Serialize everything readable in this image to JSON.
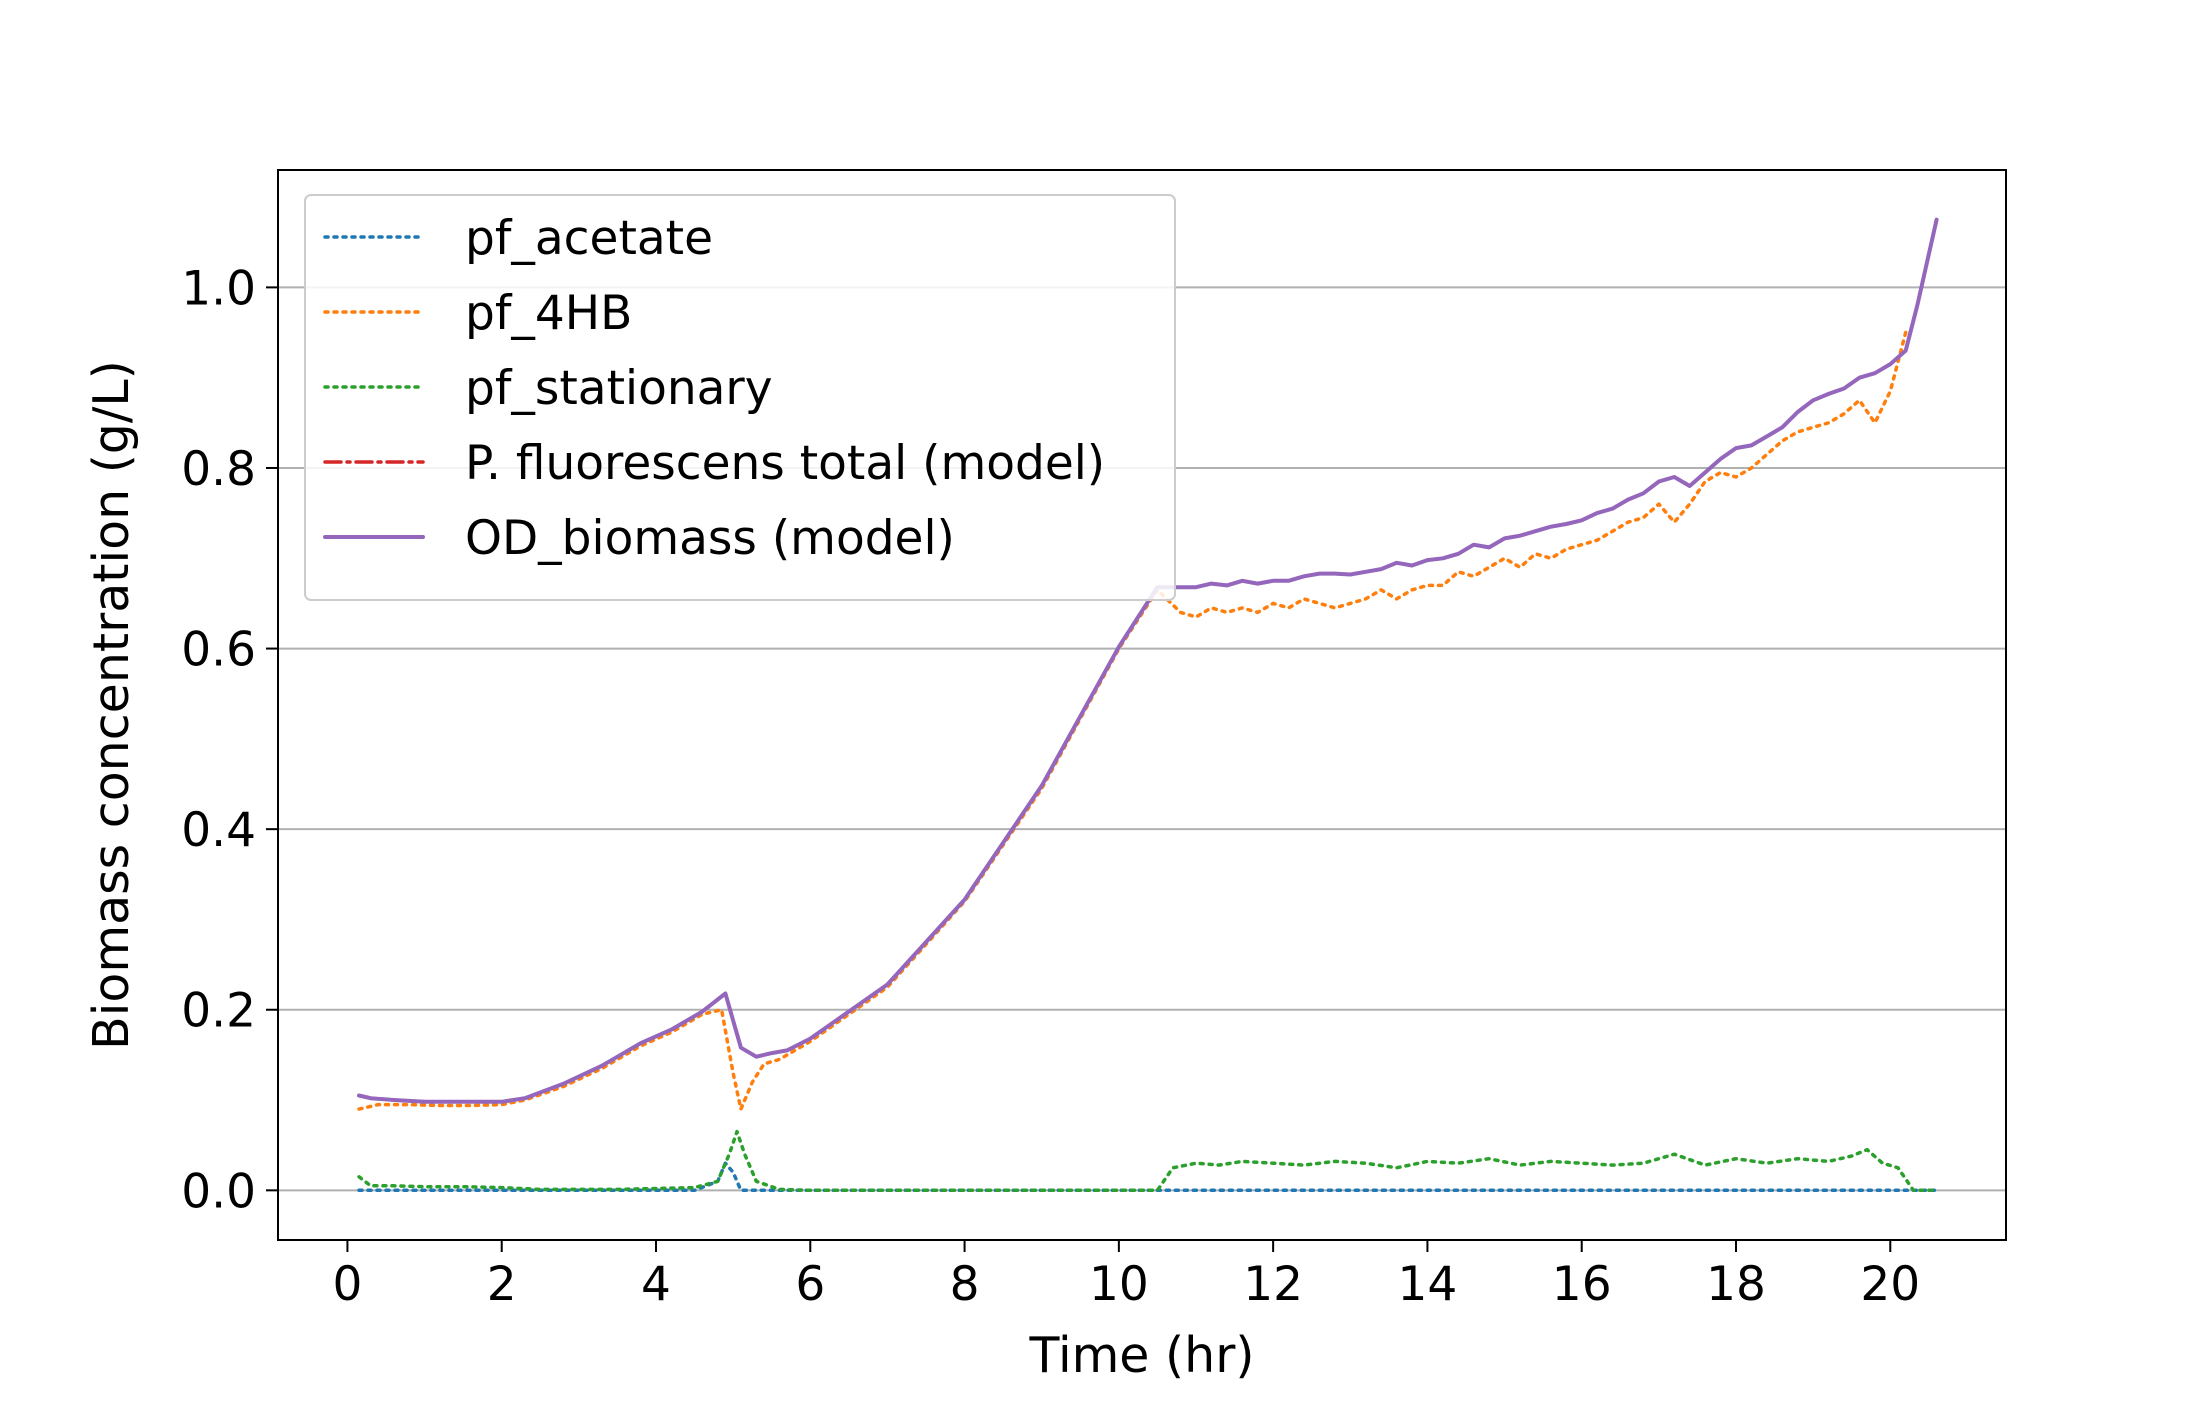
{
  "chart_data": {
    "type": "line",
    "title": "",
    "xlabel": "Time (hr)",
    "ylabel": "Biomass concentration (g/L)",
    "xlim": [
      -0.9,
      21.5
    ],
    "ylim": [
      -0.055,
      1.13
    ],
    "xticks": [
      0,
      2,
      4,
      6,
      8,
      10,
      12,
      14,
      16,
      18,
      20
    ],
    "xtick_labels": [
      "0",
      "2",
      "4",
      "6",
      "8",
      "10",
      "12",
      "14",
      "16",
      "18",
      "20"
    ],
    "yticks": [
      0.0,
      0.2,
      0.4,
      0.6,
      0.8,
      1.0
    ],
    "ytick_labels": [
      "0.0",
      "0.2",
      "0.4",
      "0.6",
      "0.8",
      "1.0"
    ],
    "grid": "horizontal",
    "legend_position": "top-left",
    "series": [
      {
        "name": "pf_acetate",
        "color": "#1f77b4",
        "style": "dotted",
        "x": [
          0.15,
          0.5,
          1,
          2,
          3,
          4,
          4.5,
          4.8,
          4.9,
          5.0,
          5.1,
          5.3,
          6,
          8,
          10,
          12,
          14,
          16,
          18,
          20,
          20.6
        ],
        "y": [
          0.0,
          0.0,
          0.0,
          0.0,
          0.0,
          0.0,
          0.0,
          0.01,
          0.03,
          0.02,
          0.0,
          0.0,
          0.0,
          0.0,
          0.0,
          0.0,
          0.0,
          0.0,
          0.0,
          0.0,
          0.0
        ]
      },
      {
        "name": "pf_4HB",
        "color": "#ff7f0e",
        "style": "dotted",
        "x": [
          0.15,
          0.4,
          0.8,
          1.2,
          1.6,
          2.0,
          2.3,
          2.8,
          3.3,
          3.8,
          4.2,
          4.6,
          4.85,
          5.0,
          5.1,
          5.25,
          5.4,
          5.6,
          6.0,
          7.0,
          8.0,
          9.0,
          10.0,
          10.5,
          10.8,
          11.0,
          11.2,
          11.4,
          11.6,
          11.8,
          12.0,
          12.2,
          12.4,
          12.6,
          12.8,
          13.0,
          13.2,
          13.4,
          13.6,
          13.8,
          14.0,
          14.2,
          14.4,
          14.6,
          14.8,
          15.0,
          15.2,
          15.4,
          15.6,
          15.8,
          16.0,
          16.2,
          16.4,
          16.6,
          16.8,
          17.0,
          17.2,
          17.4,
          17.6,
          17.8,
          18.0,
          18.2,
          18.4,
          18.6,
          18.8,
          19.0,
          19.2,
          19.4,
          19.6,
          19.8,
          20.0,
          20.2
        ],
        "y": [
          0.09,
          0.095,
          0.095,
          0.094,
          0.094,
          0.095,
          0.1,
          0.115,
          0.135,
          0.16,
          0.175,
          0.195,
          0.2,
          0.13,
          0.09,
          0.12,
          0.14,
          0.145,
          0.165,
          0.225,
          0.32,
          0.445,
          0.6,
          0.665,
          0.64,
          0.635,
          0.645,
          0.64,
          0.645,
          0.64,
          0.65,
          0.645,
          0.655,
          0.65,
          0.645,
          0.65,
          0.655,
          0.665,
          0.655,
          0.665,
          0.67,
          0.67,
          0.685,
          0.68,
          0.69,
          0.7,
          0.69,
          0.705,
          0.7,
          0.71,
          0.715,
          0.72,
          0.73,
          0.74,
          0.745,
          0.76,
          0.74,
          0.76,
          0.785,
          0.795,
          0.79,
          0.8,
          0.815,
          0.83,
          0.84,
          0.845,
          0.85,
          0.86,
          0.875,
          0.85,
          0.885,
          0.95
        ]
      },
      {
        "name": "pf_stationary",
        "color": "#2ca02c",
        "style": "dotted",
        "x": [
          0.15,
          0.3,
          0.6,
          1.0,
          1.5,
          2.0,
          2.5,
          3.0,
          3.5,
          4.0,
          4.5,
          4.8,
          4.95,
          5.05,
          5.15,
          5.3,
          5.6,
          6.0,
          7.0,
          8.0,
          9.0,
          10.0,
          10.5,
          10.7,
          11.0,
          11.3,
          11.6,
          12.0,
          12.4,
          12.8,
          13.2,
          13.6,
          14.0,
          14.4,
          14.8,
          15.2,
          15.6,
          16.0,
          16.4,
          16.8,
          17.2,
          17.6,
          18.0,
          18.4,
          18.8,
          19.2,
          19.5,
          19.7,
          19.9,
          20.1,
          20.3,
          20.6
        ],
        "y": [
          0.015,
          0.005,
          0.005,
          0.004,
          0.004,
          0.003,
          0.001,
          0.001,
          0.001,
          0.002,
          0.003,
          0.01,
          0.04,
          0.065,
          0.04,
          0.01,
          0.001,
          0.0,
          0.0,
          0.0,
          0.0,
          0.0,
          0.0,
          0.025,
          0.03,
          0.028,
          0.032,
          0.03,
          0.028,
          0.032,
          0.03,
          0.025,
          0.032,
          0.03,
          0.035,
          0.028,
          0.032,
          0.03,
          0.028,
          0.03,
          0.04,
          0.028,
          0.035,
          0.03,
          0.035,
          0.032,
          0.038,
          0.045,
          0.03,
          0.025,
          0.0,
          0.0
        ]
      },
      {
        "name": "P. fluorescens total (model)",
        "color": "#d62728",
        "style": "dashdot",
        "x": [
          0.15,
          0.3,
          0.6,
          1.0,
          1.5,
          2.0,
          2.3,
          2.8,
          3.3,
          3.8,
          4.2,
          4.6,
          4.9,
          5.1,
          5.3,
          5.5,
          5.7,
          6.0,
          7.0,
          8.0,
          9.0,
          10.0,
          10.5,
          10.8,
          11.0,
          11.2,
          11.4,
          11.6,
          11.8,
          12.0,
          12.2,
          12.4,
          12.6,
          12.8,
          13.0,
          13.2,
          13.4,
          13.6,
          13.8,
          14.0,
          14.2,
          14.4,
          14.6,
          14.8,
          15.0,
          15.2,
          15.4,
          15.6,
          15.8,
          16.0,
          16.2,
          16.4,
          16.6,
          16.8,
          17.0,
          17.2,
          17.4,
          17.6,
          17.8,
          18.0,
          18.2,
          18.4,
          18.6,
          18.8,
          19.0,
          19.2,
          19.4,
          19.6,
          19.8,
          20.0,
          20.2,
          20.35,
          20.6
        ],
        "y": [
          0.105,
          0.102,
          0.1,
          0.098,
          0.098,
          0.098,
          0.102,
          0.118,
          0.138,
          0.163,
          0.178,
          0.198,
          0.218,
          0.158,
          0.148,
          0.152,
          0.155,
          0.168,
          0.228,
          0.322,
          0.448,
          0.602,
          0.668,
          0.668,
          0.668,
          0.672,
          0.67,
          0.675,
          0.672,
          0.675,
          0.675,
          0.68,
          0.683,
          0.683,
          0.682,
          0.685,
          0.688,
          0.695,
          0.692,
          0.698,
          0.7,
          0.705,
          0.715,
          0.712,
          0.722,
          0.725,
          0.73,
          0.735,
          0.738,
          0.742,
          0.75,
          0.755,
          0.765,
          0.772,
          0.785,
          0.79,
          0.78,
          0.795,
          0.81,
          0.822,
          0.825,
          0.835,
          0.845,
          0.862,
          0.875,
          0.882,
          0.888,
          0.9,
          0.905,
          0.915,
          0.93,
          0.98,
          1.075
        ]
      },
      {
        "name": "OD_biomass (model)",
        "color": "#9467bd",
        "style": "solid",
        "x": [
          0.15,
          0.3,
          0.6,
          1.0,
          1.5,
          2.0,
          2.3,
          2.8,
          3.3,
          3.8,
          4.2,
          4.6,
          4.9,
          5.1,
          5.3,
          5.5,
          5.7,
          6.0,
          7.0,
          8.0,
          9.0,
          10.0,
          10.5,
          10.8,
          11.0,
          11.2,
          11.4,
          11.6,
          11.8,
          12.0,
          12.2,
          12.4,
          12.6,
          12.8,
          13.0,
          13.2,
          13.4,
          13.6,
          13.8,
          14.0,
          14.2,
          14.4,
          14.6,
          14.8,
          15.0,
          15.2,
          15.4,
          15.6,
          15.8,
          16.0,
          16.2,
          16.4,
          16.6,
          16.8,
          17.0,
          17.2,
          17.4,
          17.6,
          17.8,
          18.0,
          18.2,
          18.4,
          18.6,
          18.8,
          19.0,
          19.2,
          19.4,
          19.6,
          19.8,
          20.0,
          20.2,
          20.35,
          20.6
        ],
        "y": [
          0.105,
          0.102,
          0.1,
          0.098,
          0.098,
          0.098,
          0.102,
          0.118,
          0.138,
          0.163,
          0.178,
          0.198,
          0.218,
          0.158,
          0.148,
          0.152,
          0.155,
          0.168,
          0.228,
          0.322,
          0.448,
          0.602,
          0.668,
          0.668,
          0.668,
          0.672,
          0.67,
          0.675,
          0.672,
          0.675,
          0.675,
          0.68,
          0.683,
          0.683,
          0.682,
          0.685,
          0.688,
          0.695,
          0.692,
          0.698,
          0.7,
          0.705,
          0.715,
          0.712,
          0.722,
          0.725,
          0.73,
          0.735,
          0.738,
          0.742,
          0.75,
          0.755,
          0.765,
          0.772,
          0.785,
          0.79,
          0.78,
          0.795,
          0.81,
          0.822,
          0.825,
          0.835,
          0.845,
          0.862,
          0.875,
          0.882,
          0.888,
          0.9,
          0.905,
          0.915,
          0.93,
          0.98,
          1.075
        ]
      }
    ]
  }
}
